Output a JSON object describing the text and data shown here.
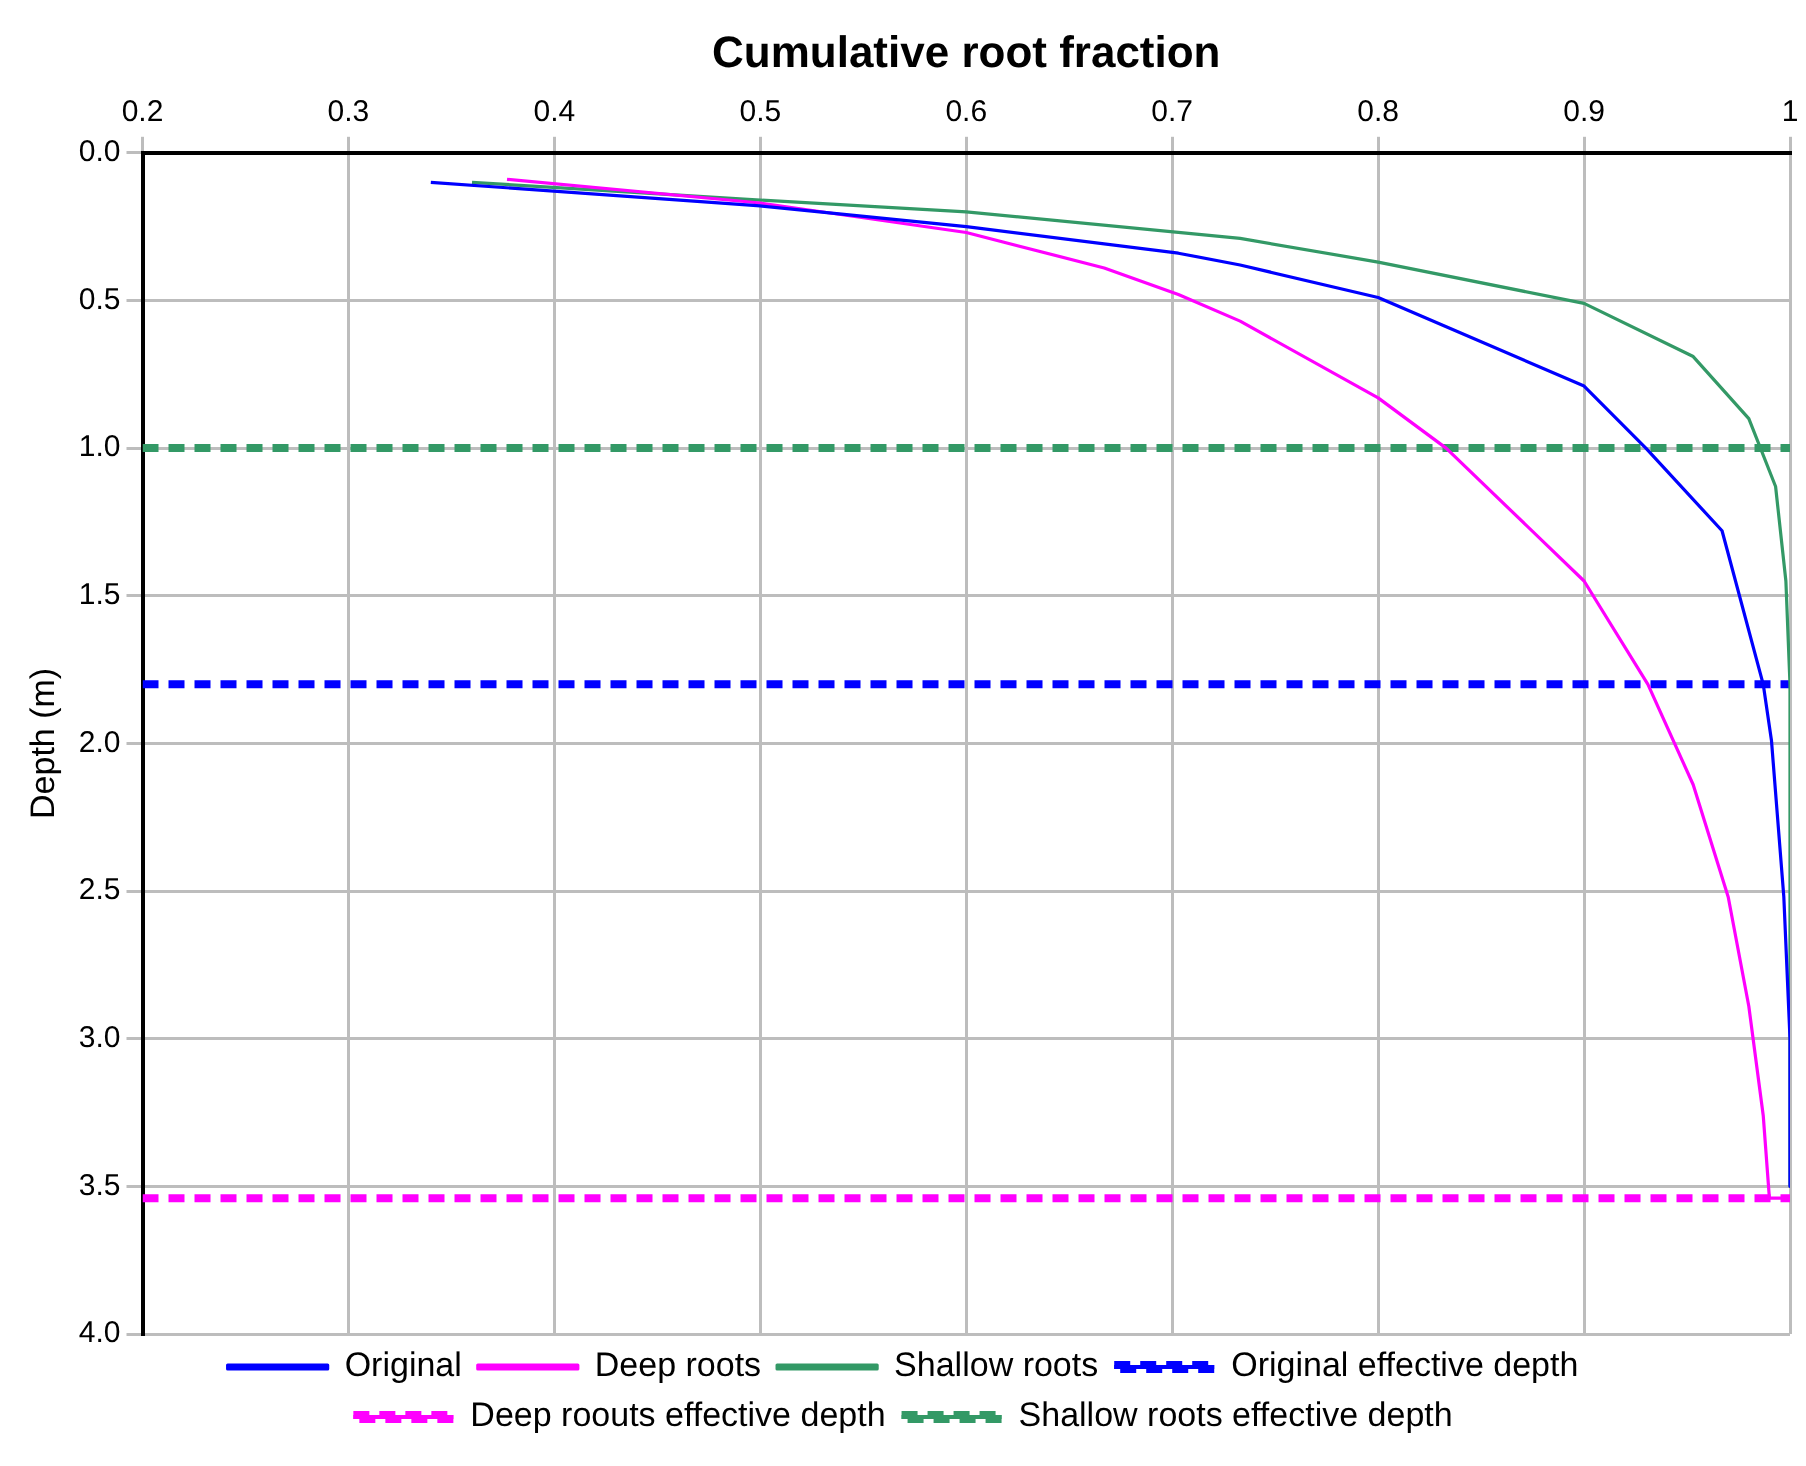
{
  "chart_data": {
    "type": "line",
    "xlabel": "Cumulative root fraction",
    "ylabel": "Depth (m)",
    "xlim": [
      0.2,
      1
    ],
    "xticks": [
      0.2,
      0.3,
      0.4,
      0.5,
      0.6,
      0.7,
      0.8,
      0.9,
      1
    ],
    "ylim": [
      4,
      0
    ],
    "yticks": [
      {
        "value": 0,
        "label": "0.0"
      },
      {
        "value": 0.5,
        "label": "0.5"
      },
      {
        "value": 1,
        "label": "1.0"
      },
      {
        "value": 1.5,
        "label": "1.5"
      },
      {
        "value": 2,
        "label": "2.0"
      },
      {
        "value": 2.5,
        "label": "2.5"
      },
      {
        "value": 3,
        "label": "3.0"
      },
      {
        "value": 3.5,
        "label": "3.5"
      },
      {
        "value": 4,
        "label": "4.0"
      }
    ],
    "grid": true,
    "legend": "bottom",
    "marker": "none",
    "series": [
      {
        "name": "Original",
        "color": "#0000ff",
        "x": [
          0.34,
          0.5,
          0.6,
          0.703,
          0.733,
          0.8,
          0.9,
          0.93,
          0.967,
          0.987,
          0.991,
          0.997,
          1,
          1
        ],
        "values": [
          0.1,
          0.18,
          0.25,
          0.34,
          0.38,
          0.49,
          0.79,
          1.0,
          1.28,
          1.8,
          1.99,
          2.52,
          3.0,
          3.5
        ]
      },
      {
        "name": "Deep roots",
        "color": "#ff00ff",
        "x": [
          0.377,
          0.5,
          0.6,
          0.667,
          0.703,
          0.733,
          0.8,
          0.833,
          0.9,
          0.931,
          0.953,
          0.97,
          0.98,
          0.987,
          0.99,
          1
        ],
        "values": [
          0.09,
          0.17,
          0.27,
          0.39,
          0.48,
          0.57,
          0.83,
          1.0,
          1.45,
          1.8,
          2.14,
          2.52,
          2.89,
          3.26,
          3.54,
          3.54
        ]
      },
      {
        "name": "Shallow roots",
        "color": "#339966",
        "x": [
          0.36,
          0.5,
          0.6,
          0.733,
          0.8,
          0.9,
          0.953,
          0.98,
          0.993,
          0.998,
          1,
          1
        ],
        "values": [
          0.1,
          0.16,
          0.2,
          0.29,
          0.37,
          0.51,
          0.69,
          0.9,
          1.13,
          1.45,
          1.8,
          3.5
        ]
      },
      {
        "name": "Original effective depth",
        "color": "#0000ff",
        "line_style": "dashed",
        "x": [
          0.2,
          1
        ],
        "values": [
          1.8,
          1.8
        ]
      },
      {
        "name": "Deep roouts effective depth",
        "color": "#ff00ff",
        "line_style": "dashed",
        "x": [
          0.2,
          1
        ],
        "values": [
          3.54,
          3.54
        ]
      },
      {
        "name": "Shallow roots effective depth",
        "color": "#339966",
        "line_style": "dashed",
        "x": [
          0.2,
          1
        ],
        "values": [
          1.0,
          1.0
        ]
      }
    ]
  }
}
